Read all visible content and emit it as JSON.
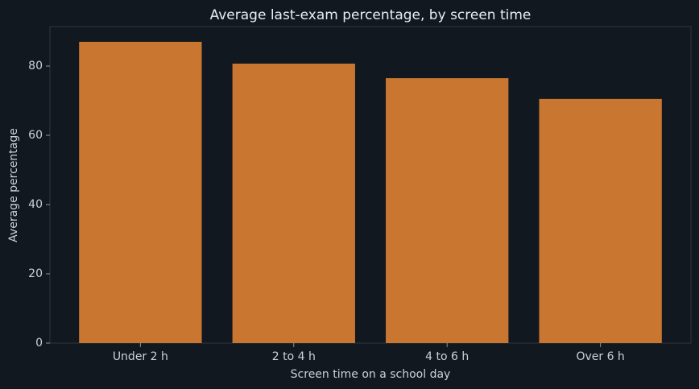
{
  "chart_data": {
    "type": "bar",
    "title": "Average last-exam percentage, by screen time",
    "x_label": "Screen time on a school day",
    "y_label": "Average percentage",
    "categories": [
      "Under 2 h",
      "2 to 4 h",
      "4 to 6 h",
      "Over 6 h"
    ],
    "values": [
      87.0,
      80.7,
      76.5,
      70.5
    ],
    "color": "#c87630",
    "ylim": [
      0,
      91.4
    ],
    "yticks": [
      0,
      20,
      40,
      60,
      80
    ],
    "grid": false
  }
}
